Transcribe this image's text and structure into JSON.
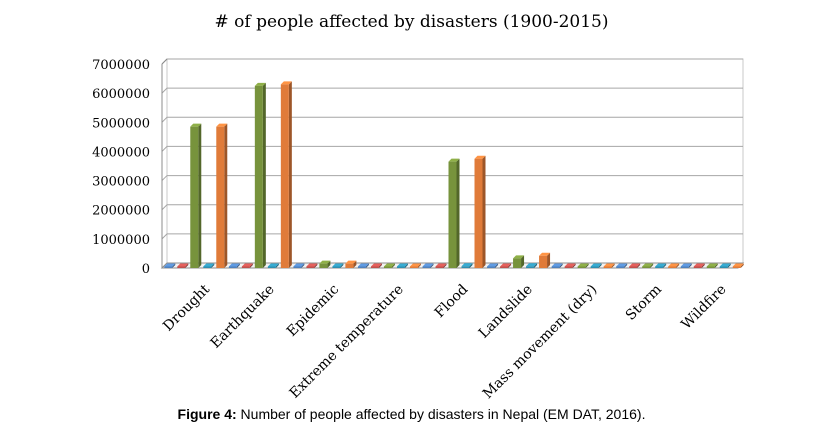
{
  "chart_data": {
    "type": "bar",
    "title": "# of people affected by disasters (1900-2015)",
    "categories": [
      "Drought",
      "Earthquake",
      "Epidemic",
      "Extreme temperature",
      "Flood",
      "Landslide",
      "Mass movement (dry)",
      "Storm",
      "Wildfire"
    ],
    "series": [
      {
        "color": "#4f81bd",
        "values": [
          0,
          0,
          0,
          0,
          0,
          0,
          0,
          0,
          0
        ]
      },
      {
        "color": "#c0504d",
        "values": [
          0,
          20000,
          0,
          0,
          0,
          0,
          0,
          0,
          0
        ]
      },
      {
        "color": "#77933c",
        "values": [
          4850000,
          6250000,
          150000,
          0,
          3650000,
          330000,
          0,
          0,
          0
        ]
      },
      {
        "color": "#2e8fb0",
        "values": [
          0,
          50000,
          0,
          0,
          60000,
          60000,
          0,
          0,
          0
        ]
      },
      {
        "color": "#e07b39",
        "values": [
          4850000,
          6300000,
          150000,
          0,
          3750000,
          420000,
          0,
          0,
          40000
        ]
      }
    ],
    "ylim": [
      0,
      7000000
    ],
    "yticks": [
      "0",
      "1000000",
      "2000000",
      "3000000",
      "4000000",
      "5000000",
      "6000000",
      "7000000"
    ],
    "grid": true,
    "legend": "none"
  },
  "caption": {
    "label": "Figure 4:",
    "text": " Number of people affected by disasters in Nepal (EM DAT, 2016)."
  }
}
